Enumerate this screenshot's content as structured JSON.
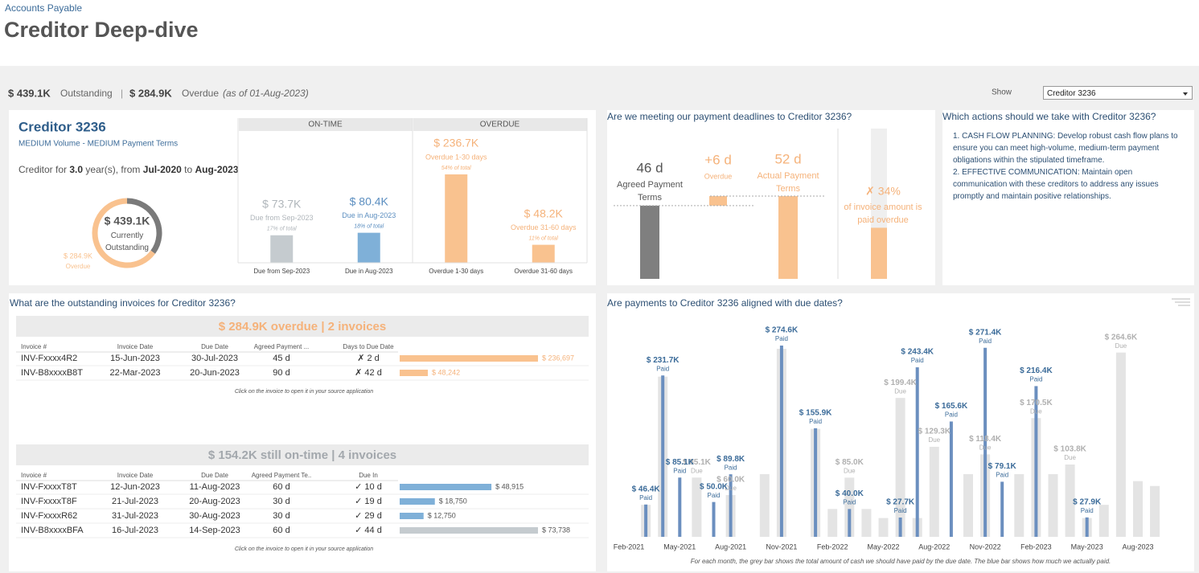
{
  "header": {
    "breadcrumb": "Accounts Payable",
    "title": "Creditor Deep-dive"
  },
  "summary": {
    "outstanding_amount": "$ 439.1K",
    "outstanding_label": "Outstanding",
    "separator": "|",
    "overdue_amount": "$ 284.9K",
    "overdue_label": "Overdue",
    "as_of": "(as of 01-Aug-2023)"
  },
  "filter": {
    "label": "Show",
    "selected": "Creditor 3236"
  },
  "creditor": {
    "name": "Creditor 3236",
    "segment": "MEDIUM Volume - MEDIUM Payment Terms",
    "tenure": {
      "prefix": "Creditor for",
      "years": "3.0",
      "middle": "year(s), from",
      "start": "Jul-2020",
      "to": "to",
      "end": "Aug-2023"
    }
  },
  "actions": {
    "title": "Which actions should we take with Creditor 3236?",
    "items": [
      "1. CASH FLOW PLANNING: Develop robust cash flow plans to ensure you can meet high-volume, medium-term payment obligations within the stipulated timeframe.",
      "2. EFFECTIVE COMMUNICATION: Maintain open communication with these creditors to address any issues promptly and maintain positive relationships."
    ]
  },
  "invoices": {
    "title": "What are the outstanding invoices for Creditor 3236?",
    "overdue": {
      "summary": "$ 284.9K overdue | 2 invoices",
      "color": "#f5b27a",
      "bar_color": "#f9c28f",
      "label_color": "#f5b27a",
      "columns": [
        "Invoice #",
        "Invoice Date",
        "Due Date",
        "Agreed Payment ...",
        "Days to Due Date"
      ],
      "rows": [
        [
          "INV-Fxxxx4R2",
          "15-Jun-2023",
          "30-Jul-2023",
          "45 d",
          "✗ 2 d"
        ],
        [
          "INV-B8xxxxB8T",
          "22-Mar-2023",
          "20-Jun-2023",
          "90 d",
          "✗ 42 d"
        ]
      ],
      "amounts": [
        236697,
        48242
      ],
      "amount_labels": [
        "$ 236,697",
        "$ 48,242"
      ],
      "note": "Click on the invoice to open it in your source application"
    },
    "on_time": {
      "summary": "$ 154.2K still on-time | 4 invoices",
      "color": "#a3a8ad",
      "bar_colors": [
        "#7fb0d8",
        "#7fb0d8",
        "#7fb0d8",
        "#c5cbcf"
      ],
      "label_color": "#555555",
      "columns": [
        "Invoice #",
        "Invoice Date",
        "Due Date",
        "Agreed Payment Te..",
        "Due In"
      ],
      "rows": [
        [
          "INV-FxxxxT8T",
          "12-Jun-2023",
          "11-Aug-2023",
          "60 d",
          "✓ 10 d"
        ],
        [
          "INV-FxxxxT8F",
          "21-Jul-2023",
          "20-Aug-2023",
          "30 d",
          "✓ 19 d"
        ],
        [
          "INV-FxxxxR62",
          "31-Jul-2023",
          "30-Aug-2023",
          "30 d",
          "✓ 29 d"
        ],
        [
          "INV-B8xxxxBFA",
          "16-Jul-2023",
          "14-Sep-2023",
          "60 d",
          "✓ 44 d"
        ]
      ],
      "amounts": [
        48915,
        18750,
        12750,
        73738
      ],
      "amount_labels": [
        "$ 48,915",
        "$ 18,750",
        "$ 12,750",
        "$ 73,738"
      ],
      "note": "Click on the invoice to open it in your source application"
    }
  },
  "chart_data": [
    {
      "type": "donut",
      "total": {
        "value": 439.1,
        "label": "$ 439.1K"
      },
      "total_caption": "Currently Outstanding",
      "overdue": {
        "value": 284.9,
        "label": "$ 284.9K"
      },
      "overdue_caption": "Overdue",
      "colors": {
        "remainder": "#7a7a7a",
        "overdue": "#f9c28f"
      }
    },
    {
      "type": "grouped-bar",
      "groups": [
        {
          "name": "ON-TIME",
          "categories": [
            "Due from Sep-2023",
            "Due in Aug-2023"
          ],
          "values": [
            73.7,
            80.4
          ],
          "value_labels": [
            "$ 73.7K",
            "$ 80.4K"
          ],
          "share_labels": [
            "17% of total",
            "18% of total"
          ],
          "colors": [
            "#c5cbcf",
            "#7fb0d8"
          ],
          "text_colors": [
            "#b0b6bb",
            "#5b8ec0"
          ]
        },
        {
          "name": "OVERDUE",
          "categories": [
            "Overdue 1-30 days",
            "Overdue 31-60 days"
          ],
          "values": [
            236.7,
            48.2
          ],
          "value_labels": [
            "$ 236.7K",
            "$ 48.2K"
          ],
          "share_labels": [
            "54% of total",
            "11% of total"
          ],
          "colors": [
            "#f9c28f",
            "#f9c28f"
          ],
          "text_colors": [
            "#f5b27a",
            "#f5b27a"
          ]
        }
      ]
    },
    {
      "type": "waterfall",
      "title": "Are we meeting our payment deadlines to Creditor 3236?",
      "categories": [
        "Agreed Payment Terms",
        "Overdue",
        "Actual Payment Terms"
      ],
      "values": [
        46,
        6,
        52
      ],
      "value_labels": [
        "46 d",
        "+6 d",
        "52 d"
      ],
      "colors": [
        "#7f7f7f",
        "#f9c28f",
        "#f9c28f"
      ],
      "text_colors": [
        "#555555",
        "#f5b27a",
        "#f5b27a"
      ]
    },
    {
      "type": "progress",
      "value": 34,
      "value_label": "✗ 34%",
      "caption": "of invoice amount is paid overdue",
      "ylim": [
        0,
        100
      ],
      "color": "#f9c28f",
      "track_color": "#efefef"
    },
    {
      "type": "bar",
      "title": "Are payments to Creditor 3236 aligned with due dates?",
      "categories": [
        "Feb-2021",
        null,
        null,
        "May-2021",
        null,
        null,
        "Aug-2021",
        null,
        null,
        "Nov-2021",
        null,
        null,
        "Feb-2022",
        null,
        null,
        "May-2022",
        null,
        null,
        "Aug-2022",
        null,
        null,
        "Nov-2022",
        null,
        null,
        "Feb-2023",
        null,
        null,
        "May-2023",
        null,
        null,
        "Aug-2023",
        null
      ],
      "series": [
        {
          "name": "Due",
          "color": "#e4e4e4",
          "label_color": "#b0b0b0",
          "values": [
            null,
            46,
            230,
            null,
            85.1,
            null,
            60.0,
            null,
            90,
            270,
            null,
            155,
            40,
            85.0,
            40,
            27,
            199.4,
            27,
            129.3,
            null,
            90,
            118.4,
            null,
            90,
            170.5,
            90,
            103.8,
            27,
            46,
            264.6,
            80,
            73
          ],
          "value_labels": [
            null,
            null,
            null,
            null,
            "$ 85.1K",
            null,
            "$ 60.0K",
            null,
            null,
            null,
            null,
            null,
            null,
            "$ 85.0K",
            null,
            null,
            "$ 199.4K",
            null,
            "$ 129.3K",
            null,
            null,
            "$ 118.4K",
            null,
            null,
            "$ 170.5K",
            null,
            "$ 103.8K",
            null,
            null,
            "$ 264.6K",
            null,
            null
          ]
        },
        {
          "name": "Paid",
          "color": "#6b8fbf",
          "label_color": "#3b6b99",
          "values": [
            null,
            46.4,
            231.7,
            85.1,
            null,
            50.0,
            89.8,
            null,
            null,
            274.6,
            null,
            155.9,
            null,
            40.0,
            null,
            null,
            27.7,
            243.4,
            null,
            165.6,
            null,
            271.4,
            79.1,
            null,
            216.4,
            null,
            null,
            27.9,
            null,
            null,
            null,
            null
          ],
          "value_labels": [
            null,
            "$ 46.4K",
            "$ 231.7K",
            "$ 85.1K",
            null,
            "$ 50.0K",
            "$ 89.8K",
            null,
            null,
            "$ 274.6K",
            null,
            "$ 155.9K",
            null,
            "$ 40.0K",
            null,
            null,
            "$ 27.7K",
            "$ 243.4K",
            null,
            "$ 165.6K",
            null,
            "$ 271.4K",
            "$ 79.1K",
            null,
            "$ 216.4K",
            null,
            null,
            "$ 27.9K",
            null,
            null,
            null,
            null
          ]
        }
      ],
      "note": "For each month, the grey bar shows the total amount of cash we should have paid by the due date. The blue bar shows how much we actually paid."
    }
  ]
}
